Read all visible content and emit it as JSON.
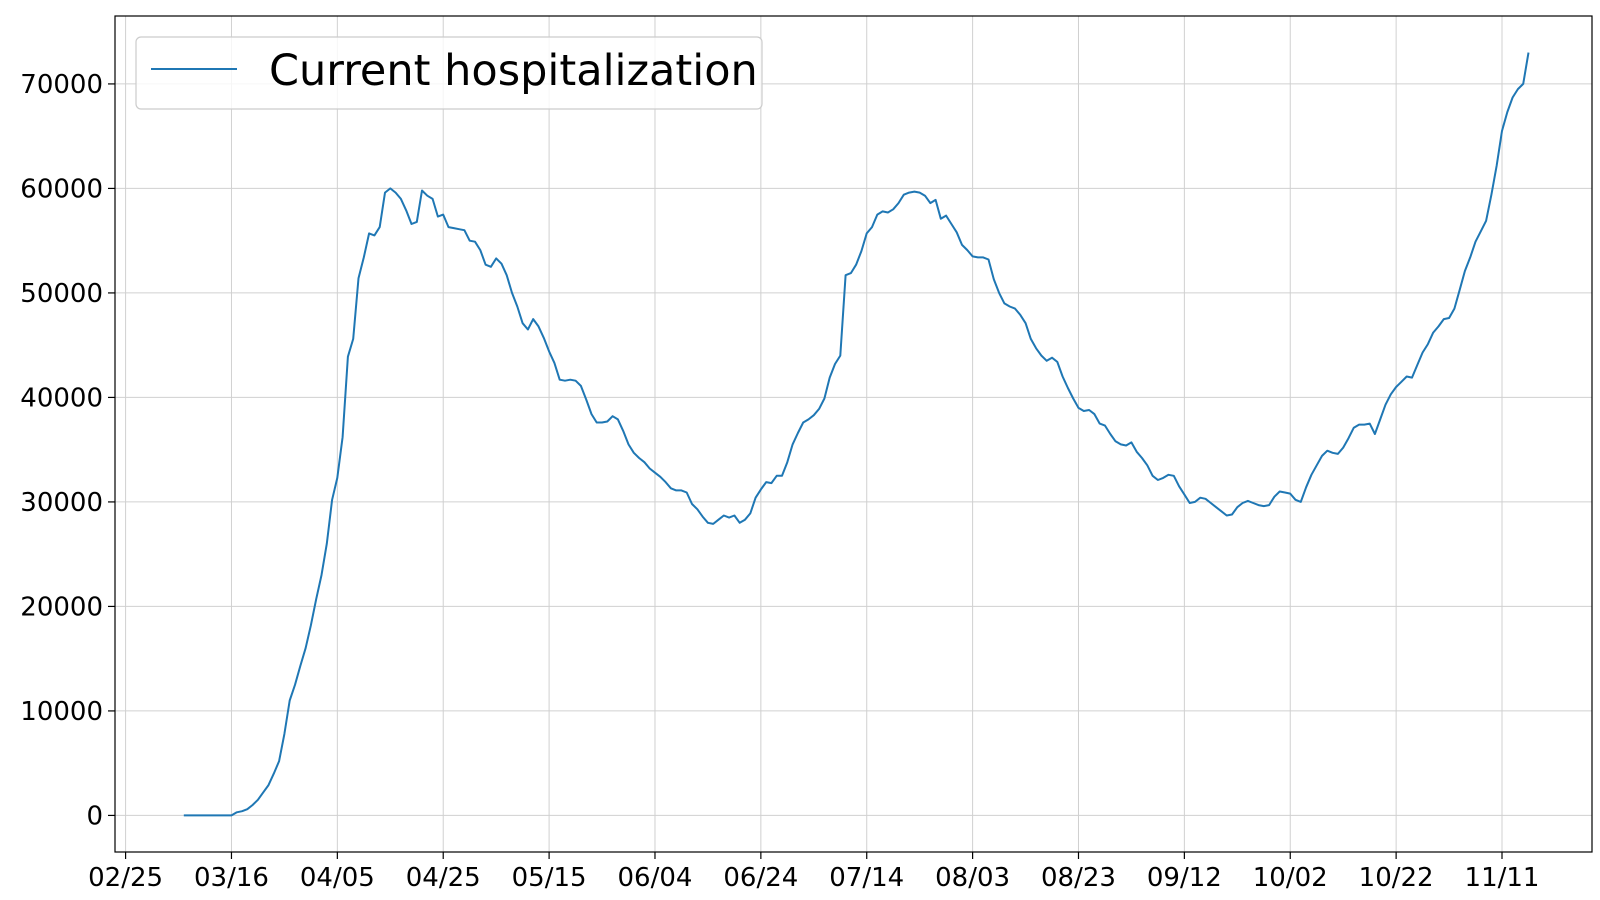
{
  "chart_data": {
    "type": "line",
    "title": "",
    "xlabel": "",
    "ylabel": "",
    "x_format": "MM/DD",
    "x_ticks": [
      "02/25",
      "03/16",
      "04/05",
      "04/25",
      "05/15",
      "06/04",
      "06/24",
      "07/14",
      "08/03",
      "08/23",
      "09/12",
      "10/02",
      "10/22",
      "11/11"
    ],
    "y_ticks": [
      0,
      10000,
      20000,
      30000,
      40000,
      50000,
      60000,
      70000
    ],
    "xlim": [
      "02/23",
      "11/28"
    ],
    "ylim": [
      -3500,
      76500
    ],
    "grid": true,
    "legend": "top-left",
    "series": [
      {
        "name": "Current hospitalization",
        "color": "#1f77b4",
        "points": [
          [
            "03/07",
            0
          ],
          [
            "03/09",
            0
          ],
          [
            "03/11",
            0
          ],
          [
            "03/13",
            0
          ],
          [
            "03/15",
            0
          ],
          [
            "03/16",
            0
          ],
          [
            "03/17",
            300
          ],
          [
            "03/18",
            400
          ],
          [
            "03/19",
            600
          ],
          [
            "03/20",
            1000
          ],
          [
            "03/21",
            1500
          ],
          [
            "03/22",
            2200
          ],
          [
            "03/23",
            2900
          ],
          [
            "03/24",
            4000
          ],
          [
            "03/25",
            5200
          ],
          [
            "03/26",
            7800
          ],
          [
            "03/27",
            11000
          ],
          [
            "03/28",
            12500
          ],
          [
            "03/29",
            14300
          ],
          [
            "03/30",
            16000
          ],
          [
            "03/31",
            18200
          ],
          [
            "04/01",
            20700
          ],
          [
            "04/02",
            23000
          ],
          [
            "04/03",
            26000
          ],
          [
            "04/04",
            30200
          ],
          [
            "04/05",
            32300
          ],
          [
            "04/06",
            36200
          ],
          [
            "04/07",
            43900
          ],
          [
            "04/08",
            45600
          ],
          [
            "04/09",
            51400
          ],
          [
            "04/10",
            53400
          ],
          [
            "04/11",
            55700
          ],
          [
            "04/12",
            55500
          ],
          [
            "04/13",
            56300
          ],
          [
            "04/14",
            59600
          ],
          [
            "04/15",
            60000
          ],
          [
            "04/16",
            59600
          ],
          [
            "04/17",
            59000
          ],
          [
            "04/18",
            57900
          ],
          [
            "04/19",
            56600
          ],
          [
            "04/20",
            56800
          ],
          [
            "04/21",
            59800
          ],
          [
            "04/22",
            59300
          ],
          [
            "04/23",
            59000
          ],
          [
            "04/24",
            57300
          ],
          [
            "04/25",
            57500
          ],
          [
            "04/26",
            56300
          ],
          [
            "04/27",
            56200
          ],
          [
            "04/28",
            56100
          ],
          [
            "04/29",
            56000
          ],
          [
            "04/30",
            55000
          ],
          [
            "05/01",
            54900
          ],
          [
            "05/02",
            54100
          ],
          [
            "05/03",
            52700
          ],
          [
            "05/04",
            52500
          ],
          [
            "05/05",
            53300
          ],
          [
            "05/06",
            52800
          ],
          [
            "05/07",
            51700
          ],
          [
            "05/08",
            50000
          ],
          [
            "05/09",
            48700
          ],
          [
            "05/10",
            47100
          ],
          [
            "05/11",
            46500
          ],
          [
            "05/12",
            47500
          ],
          [
            "05/13",
            46800
          ],
          [
            "05/14",
            45700
          ],
          [
            "05/15",
            44400
          ],
          [
            "05/16",
            43300
          ],
          [
            "05/17",
            41700
          ],
          [
            "05/18",
            41600
          ],
          [
            "05/19",
            41700
          ],
          [
            "05/20",
            41600
          ],
          [
            "05/21",
            41100
          ],
          [
            "05/22",
            39800
          ],
          [
            "05/23",
            38400
          ],
          [
            "05/24",
            37600
          ],
          [
            "05/25",
            37600
          ],
          [
            "05/26",
            37700
          ],
          [
            "05/27",
            38200
          ],
          [
            "05/28",
            37900
          ],
          [
            "05/29",
            36800
          ],
          [
            "05/30",
            35500
          ],
          [
            "05/31",
            34700
          ],
          [
            "06/01",
            34200
          ],
          [
            "06/02",
            33800
          ],
          [
            "06/03",
            33200
          ],
          [
            "06/04",
            32800
          ],
          [
            "06/05",
            32400
          ],
          [
            "06/06",
            31900
          ],
          [
            "06/07",
            31300
          ],
          [
            "06/08",
            31100
          ],
          [
            "06/09",
            31100
          ],
          [
            "06/10",
            30900
          ],
          [
            "06/11",
            29800
          ],
          [
            "06/12",
            29300
          ],
          [
            "06/13",
            28600
          ],
          [
            "06/14",
            28000
          ],
          [
            "06/15",
            27900
          ],
          [
            "06/16",
            28300
          ],
          [
            "06/17",
            28700
          ],
          [
            "06/18",
            28500
          ],
          [
            "06/19",
            28700
          ],
          [
            "06/20",
            28000
          ],
          [
            "06/21",
            28300
          ],
          [
            "06/22",
            28900
          ],
          [
            "06/23",
            30400
          ],
          [
            "06/24",
            31200
          ],
          [
            "06/25",
            31900
          ],
          [
            "06/26",
            31800
          ],
          [
            "06/27",
            32500
          ],
          [
            "06/28",
            32500
          ],
          [
            "06/29",
            33800
          ],
          [
            "06/30",
            35500
          ],
          [
            "07/01",
            36600
          ],
          [
            "07/02",
            37600
          ],
          [
            "07/03",
            37900
          ],
          [
            "07/04",
            38300
          ],
          [
            "07/05",
            38900
          ],
          [
            "07/06",
            39900
          ],
          [
            "07/07",
            41900
          ],
          [
            "07/08",
            43200
          ],
          [
            "07/09",
            44000
          ],
          [
            "07/10",
            51700
          ],
          [
            "07/11",
            51900
          ],
          [
            "07/12",
            52700
          ],
          [
            "07/13",
            54000
          ],
          [
            "07/14",
            55700
          ],
          [
            "07/15",
            56300
          ],
          [
            "07/16",
            57500
          ],
          [
            "07/17",
            57800
          ],
          [
            "07/18",
            57700
          ],
          [
            "07/19",
            58000
          ],
          [
            "07/20",
            58600
          ],
          [
            "07/21",
            59400
          ],
          [
            "07/22",
            59600
          ],
          [
            "07/23",
            59700
          ],
          [
            "07/24",
            59600
          ],
          [
            "07/25",
            59300
          ],
          [
            "07/26",
            58600
          ],
          [
            "07/27",
            58900
          ],
          [
            "07/28",
            57100
          ],
          [
            "07/29",
            57400
          ],
          [
            "07/30",
            56600
          ],
          [
            "07/31",
            55800
          ],
          [
            "08/01",
            54600
          ],
          [
            "08/02",
            54100
          ],
          [
            "08/03",
            53500
          ],
          [
            "08/04",
            53400
          ],
          [
            "08/05",
            53400
          ],
          [
            "08/06",
            53200
          ],
          [
            "08/07",
            51300
          ],
          [
            "08/08",
            50000
          ],
          [
            "08/09",
            49000
          ],
          [
            "08/10",
            48700
          ],
          [
            "08/11",
            48500
          ],
          [
            "08/12",
            47900
          ],
          [
            "08/13",
            47100
          ],
          [
            "08/14",
            45600
          ],
          [
            "08/15",
            44700
          ],
          [
            "08/16",
            44000
          ],
          [
            "08/17",
            43500
          ],
          [
            "08/18",
            43800
          ],
          [
            "08/19",
            43400
          ],
          [
            "08/20",
            42000
          ],
          [
            "08/21",
            40900
          ],
          [
            "08/22",
            39900
          ],
          [
            "08/23",
            39000
          ],
          [
            "08/24",
            38700
          ],
          [
            "08/25",
            38800
          ],
          [
            "08/26",
            38400
          ],
          [
            "08/27",
            37500
          ],
          [
            "08/28",
            37300
          ],
          [
            "08/29",
            36500
          ],
          [
            "08/30",
            35800
          ],
          [
            "08/31",
            35500
          ],
          [
            "09/01",
            35400
          ],
          [
            "09/02",
            35700
          ],
          [
            "09/03",
            34800
          ],
          [
            "09/04",
            34200
          ],
          [
            "09/05",
            33500
          ],
          [
            "09/06",
            32500
          ],
          [
            "09/07",
            32100
          ],
          [
            "09/08",
            32300
          ],
          [
            "09/09",
            32600
          ],
          [
            "09/10",
            32500
          ],
          [
            "09/11",
            31500
          ],
          [
            "09/12",
            30700
          ],
          [
            "09/13",
            29900
          ],
          [
            "09/14",
            30000
          ],
          [
            "09/15",
            30400
          ],
          [
            "09/16",
            30300
          ],
          [
            "09/17",
            29900
          ],
          [
            "09/18",
            29500
          ],
          [
            "09/19",
            29100
          ],
          [
            "09/20",
            28700
          ],
          [
            "09/21",
            28800
          ],
          [
            "09/22",
            29500
          ],
          [
            "09/23",
            29900
          ],
          [
            "09/24",
            30100
          ],
          [
            "09/25",
            29900
          ],
          [
            "09/26",
            29700
          ],
          [
            "09/27",
            29600
          ],
          [
            "09/28",
            29700
          ],
          [
            "09/29",
            30500
          ],
          [
            "09/30",
            31000
          ],
          [
            "10/01",
            30900
          ],
          [
            "10/02",
            30800
          ],
          [
            "10/03",
            30200
          ],
          [
            "10/04",
            30000
          ],
          [
            "10/05",
            31400
          ],
          [
            "10/06",
            32600
          ],
          [
            "10/07",
            33500
          ],
          [
            "10/08",
            34400
          ],
          [
            "10/09",
            34900
          ],
          [
            "10/10",
            34700
          ],
          [
            "10/11",
            34600
          ],
          [
            "10/12",
            35200
          ],
          [
            "10/13",
            36100
          ],
          [
            "10/14",
            37100
          ],
          [
            "10/15",
            37400
          ],
          [
            "10/16",
            37400
          ],
          [
            "10/17",
            37500
          ],
          [
            "10/18",
            36500
          ],
          [
            "10/19",
            37900
          ],
          [
            "10/20",
            39300
          ],
          [
            "10/21",
            40300
          ],
          [
            "10/22",
            41000
          ],
          [
            "10/23",
            41500
          ],
          [
            "10/24",
            42000
          ],
          [
            "10/25",
            41900
          ],
          [
            "10/26",
            43100
          ],
          [
            "10/27",
            44300
          ],
          [
            "10/28",
            45100
          ],
          [
            "10/29",
            46200
          ],
          [
            "10/30",
            46800
          ],
          [
            "10/31",
            47500
          ],
          [
            "11/01",
            47600
          ],
          [
            "11/02",
            48500
          ],
          [
            "11/03",
            50300
          ],
          [
            "11/04",
            52100
          ],
          [
            "11/05",
            53400
          ],
          [
            "11/06",
            54900
          ],
          [
            "11/07",
            55900
          ],
          [
            "11/08",
            56900
          ],
          [
            "11/09",
            59400
          ],
          [
            "11/10",
            62200
          ],
          [
            "11/11",
            65500
          ],
          [
            "11/12",
            67300
          ],
          [
            "11/13",
            68700
          ],
          [
            "11/14",
            69500
          ],
          [
            "11/15",
            70000
          ],
          [
            "11/16",
            73000
          ]
        ]
      }
    ]
  }
}
